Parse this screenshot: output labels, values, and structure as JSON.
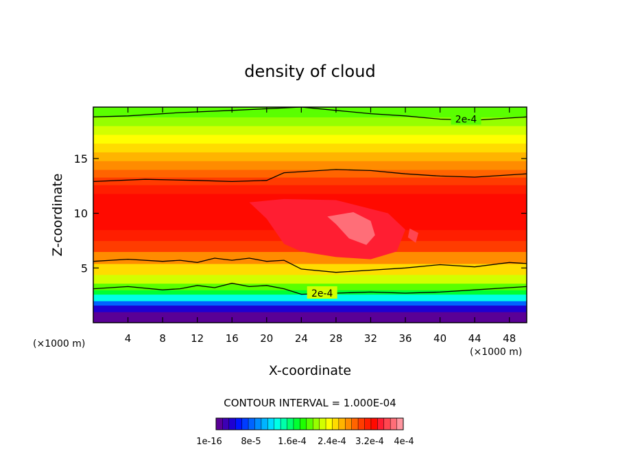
{
  "chart_data": {
    "type": "contour",
    "title": "density of cloud",
    "xlabel": "X-coordinate",
    "ylabel": "Z-coordinate",
    "x_unit": "(×1000 m)",
    "y_unit": "(×1000 m)",
    "xlim": [
      0,
      50
    ],
    "ylim": [
      0,
      19.7
    ],
    "x_ticks": [
      4,
      8,
      12,
      16,
      20,
      24,
      28,
      32,
      36,
      40,
      44,
      48
    ],
    "y_ticks": [
      5,
      10,
      15
    ],
    "contour_interval_text": "CONTOUR INTERVAL = 1.000E-04",
    "contour_line_labels": [
      "2e-4",
      "2e-4"
    ],
    "colorbar": {
      "tick_labels": [
        "1e-16",
        "8e-5",
        "1.6e-4",
        "2.4e-4",
        "3.2e-4",
        "4e-4"
      ],
      "colors": [
        "#5a0096",
        "#3c00b4",
        "#1e00d2",
        "#0014ff",
        "#003cff",
        "#0064ff",
        "#008cff",
        "#00b4ff",
        "#00dcff",
        "#00ffe6",
        "#00ffaa",
        "#00ff6e",
        "#00ff32",
        "#1eff00",
        "#5aff00",
        "#96ff00",
        "#d2ff00",
        "#ffff00",
        "#ffdc00",
        "#ffb400",
        "#ff8c00",
        "#ff6400",
        "#ff3c00",
        "#ff1e00",
        "#ff0a00",
        "#ff1e32",
        "#ff4650",
        "#ff6e78",
        "#ff96a0"
      ]
    },
    "profile": [
      {
        "z": 0.0,
        "level": 0
      },
      {
        "z": 1.0,
        "level": 2
      },
      {
        "z": 1.6,
        "level": 5
      },
      {
        "z": 2.0,
        "level": 9
      },
      {
        "z": 2.6,
        "level": 12
      },
      {
        "z": 3.0,
        "level": 14
      },
      {
        "z": 3.6,
        "level": 16
      },
      {
        "z": 4.4,
        "level": 18
      },
      {
        "z": 5.4,
        "level": 20
      },
      {
        "z": 6.5,
        "level": 22
      },
      {
        "z": 7.5,
        "level": 23
      },
      {
        "z": 8.5,
        "level": 24
      },
      {
        "z": 10.5,
        "level": 24
      },
      {
        "z": 11.8,
        "level": 23
      },
      {
        "z": 12.6,
        "level": 22
      },
      {
        "z": 13.3,
        "level": 21
      },
      {
        "z": 14.0,
        "level": 20
      },
      {
        "z": 14.8,
        "level": 19
      },
      {
        "z": 15.6,
        "level": 18
      },
      {
        "z": 16.4,
        "level": 17
      },
      {
        "z": 17.2,
        "level": 16
      },
      {
        "z": 18.0,
        "level": 15
      },
      {
        "z": 18.8,
        "level": 14
      },
      {
        "z": 19.7,
        "level": 13
      }
    ],
    "contour_lines": [
      {
        "label": "2e-4",
        "points": [
          [
            0,
            18.8
          ],
          [
            4,
            18.9
          ],
          [
            10,
            19.2
          ],
          [
            16,
            19.4
          ],
          [
            24,
            19.7
          ],
          [
            28,
            19.4
          ],
          [
            32,
            19.1
          ],
          [
            36,
            18.9
          ],
          [
            40,
            18.6
          ],
          [
            44,
            18.5
          ],
          [
            48,
            18.7
          ],
          [
            50,
            18.8
          ]
        ]
      },
      {
        "label": "",
        "points": [
          [
            0,
            12.9
          ],
          [
            6,
            13.1
          ],
          [
            12,
            13.0
          ],
          [
            16,
            12.9
          ],
          [
            20,
            13.0
          ],
          [
            22,
            13.7
          ],
          [
            28,
            14.0
          ],
          [
            32,
            13.9
          ],
          [
            36,
            13.6
          ],
          [
            40,
            13.4
          ],
          [
            44,
            13.3
          ],
          [
            50,
            13.6
          ]
        ]
      },
      {
        "label": "",
        "points": [
          [
            0,
            5.6
          ],
          [
            4,
            5.8
          ],
          [
            8,
            5.6
          ],
          [
            10,
            5.7
          ],
          [
            12,
            5.5
          ],
          [
            14,
            5.9
          ],
          [
            16,
            5.7
          ],
          [
            18,
            5.9
          ],
          [
            20,
            5.6
          ],
          [
            22,
            5.7
          ],
          [
            24,
            4.9
          ],
          [
            28,
            4.6
          ],
          [
            32,
            4.8
          ],
          [
            36,
            5.0
          ],
          [
            40,
            5.3
          ],
          [
            44,
            5.1
          ],
          [
            48,
            5.5
          ],
          [
            50,
            5.4
          ]
        ]
      },
      {
        "label": "2e-4",
        "points": [
          [
            0,
            3.1
          ],
          [
            4,
            3.3
          ],
          [
            8,
            3.0
          ],
          [
            10,
            3.1
          ],
          [
            12,
            3.4
          ],
          [
            14,
            3.2
          ],
          [
            16,
            3.6
          ],
          [
            18,
            3.3
          ],
          [
            20,
            3.4
          ],
          [
            22,
            3.1
          ],
          [
            24,
            2.6
          ],
          [
            28,
            2.7
          ],
          [
            32,
            2.8
          ],
          [
            36,
            2.7
          ],
          [
            40,
            2.8
          ],
          [
            44,
            3.0
          ],
          [
            48,
            3.2
          ],
          [
            50,
            3.3
          ]
        ]
      }
    ],
    "core_regions": [
      {
        "level": 25,
        "points": [
          [
            18,
            11
          ],
          [
            22,
            11.3
          ],
          [
            28,
            11.2
          ],
          [
            34,
            10
          ],
          [
            36,
            8.5
          ],
          [
            35,
            6.5
          ],
          [
            32,
            5.8
          ],
          [
            28,
            6
          ],
          [
            24,
            6.5
          ],
          [
            22,
            7.2
          ],
          [
            20,
            9.5
          ]
        ]
      },
      {
        "level": 27,
        "points": [
          [
            27,
            9.7
          ],
          [
            30,
            10.1
          ],
          [
            32,
            9.3
          ],
          [
            32.5,
            8
          ],
          [
            31.5,
            7.1
          ],
          [
            29.5,
            7.7
          ],
          [
            28,
            9
          ]
        ]
      },
      {
        "level": 26,
        "points": [
          [
            36.5,
            8.6
          ],
          [
            37.5,
            8.2
          ],
          [
            37.2,
            7.3
          ],
          [
            36.3,
            7.8
          ]
        ]
      }
    ]
  }
}
